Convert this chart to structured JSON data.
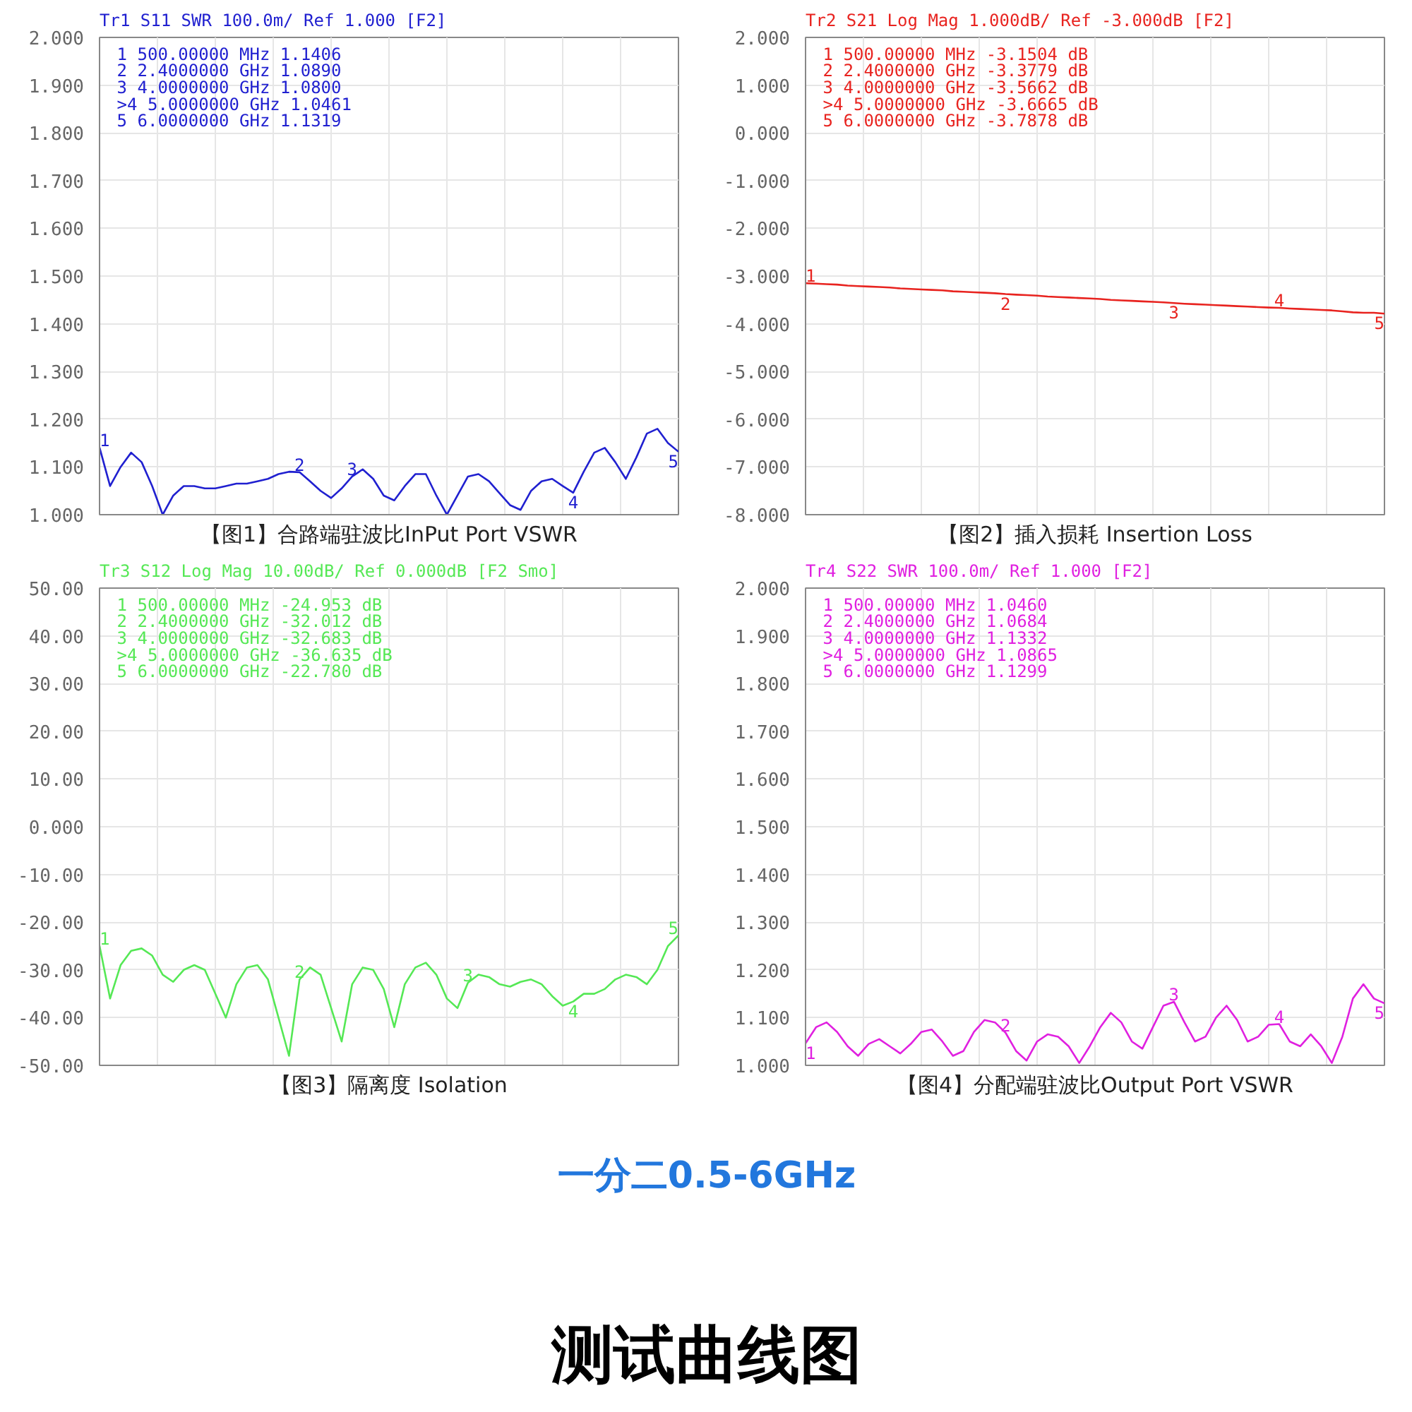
{
  "chart_data": [
    {
      "type": "line",
      "title": "Tr1 S11 SWR 100.0m/ Ref 1.000 [F2]",
      "xlabel": "【图1】合路端驻波比InPut Port VSWR",
      "categories": [
        null,
        null,
        null,
        null,
        null,
        null,
        null,
        null,
        null,
        null,
        null,
        null,
        null,
        null,
        null,
        null,
        null,
        null,
        null,
        null,
        null,
        null,
        null,
        null,
        null,
        null,
        null,
        null,
        null,
        null,
        null,
        null,
        null,
        null,
        null,
        null,
        null,
        null,
        null,
        null,
        null,
        null,
        null,
        null,
        null,
        null,
        null,
        null,
        null,
        null,
        null,
        null,
        null,
        null,
        null,
        null
      ],
      "series": [
        {
          "color": "#2020d0",
          "values": [
            1.1406,
            1.06,
            1.1,
            1.13,
            1.11,
            1.06,
            1.0,
            1.04,
            1.06,
            1.06,
            1.055,
            1.055,
            1.06,
            1.065,
            1.065,
            1.07,
            1.075,
            1.085,
            1.09,
            1.089,
            1.07,
            1.05,
            1.035,
            1.055,
            1.08,
            1.095,
            1.075,
            1.04,
            1.03,
            1.06,
            1.085,
            1.085,
            1.04,
            1.0,
            1.04,
            1.08,
            1.085,
            1.07,
            1.045,
            1.02,
            1.01,
            1.05,
            1.07,
            1.075,
            1.06,
            1.0461,
            1.09,
            1.13,
            1.14,
            1.11,
            1.075,
            1.12,
            1.17,
            1.18,
            1.15,
            1.1319
          ]
        }
      ],
      "ylim": [
        1.0,
        2.0
      ],
      "yticks": [
        {
          "value": 1.0,
          "label": "1.000"
        },
        {
          "value": 1.1,
          "label": "1.100"
        },
        {
          "value": 1.2,
          "label": "1.200"
        },
        {
          "value": 1.3,
          "label": "1.300"
        },
        {
          "value": 1.4,
          "label": "1.400"
        },
        {
          "value": 1.5,
          "label": "1.500"
        },
        {
          "value": 1.6,
          "label": "1.600"
        },
        {
          "value": 1.7,
          "label": "1.700"
        },
        {
          "value": 1.8,
          "label": "1.800"
        },
        {
          "value": 1.9,
          "label": "1.900"
        },
        {
          "value": 2.0,
          "label": "2.000"
        }
      ],
      "grid": true,
      "annotations": [
        "1   500.00000 MHz  1.1406",
        "2   2.4000000 GHz  1.0890",
        "3   4.0000000 GHz  1.0800",
        ">4  5.0000000 GHz  1.0461",
        "5   6.0000000 GHz  1.1319",
        {
          "text": "1",
          "y": 1.1406
        },
        {
          "text": "2",
          "y": 1.089
        },
        {
          "text": "3",
          "y": 1.08
        },
        {
          "text": "4",
          "y": 1.0461
        },
        {
          "text": "5",
          "y": 1.1319
        }
      ]
    },
    {
      "type": "line",
      "title": "Tr2 S21 Log Mag 1.000dB/ Ref -3.000dB [F2]",
      "xlabel": "【图2】插入损耗 Insertion Loss",
      "categories": [
        null,
        null,
        null,
        null,
        null,
        null,
        null,
        null,
        null,
        null,
        null,
        null,
        null,
        null,
        null,
        null,
        null,
        null,
        null,
        null,
        null,
        null,
        null,
        null,
        null,
        null,
        null,
        null,
        null,
        null,
        null,
        null,
        null,
        null,
        null,
        null,
        null,
        null,
        null,
        null,
        null,
        null,
        null,
        null,
        null,
        null,
        null,
        null,
        null,
        null,
        null,
        null,
        null,
        null,
        null,
        null
      ],
      "series": [
        {
          "color": "#e8231f",
          "values": [
            -3.1504,
            -3.16,
            -3.17,
            -3.18,
            -3.2,
            -3.21,
            -3.22,
            -3.23,
            -3.24,
            -3.26,
            -3.27,
            -3.28,
            -3.29,
            -3.3,
            -3.32,
            -3.33,
            -3.34,
            -3.35,
            -3.36,
            -3.3779,
            -3.39,
            -3.4,
            -3.41,
            -3.43,
            -3.44,
            -3.45,
            -3.46,
            -3.47,
            -3.48,
            -3.5,
            -3.51,
            -3.52,
            -3.53,
            -3.54,
            -3.55,
            -3.5662,
            -3.58,
            -3.59,
            -3.6,
            -3.61,
            -3.62,
            -3.63,
            -3.64,
            -3.65,
            -3.66,
            -3.6665,
            -3.68,
            -3.69,
            -3.7,
            -3.71,
            -3.72,
            -3.74,
            -3.76,
            -3.77,
            -3.77,
            -3.7878
          ]
        }
      ],
      "ylim": [
        -8.0,
        2.0
      ],
      "yticks": [
        {
          "value": -8,
          "label": "-8.000"
        },
        {
          "value": -7,
          "label": "-7.000"
        },
        {
          "value": -6,
          "label": "-6.000"
        },
        {
          "value": -5,
          "label": "-5.000"
        },
        {
          "value": -4,
          "label": "-4.000"
        },
        {
          "value": -3,
          "label": "-3.000"
        },
        {
          "value": -2,
          "label": "-2.000"
        },
        {
          "value": -1,
          "label": "-1.000"
        },
        {
          "value": 0,
          "label": "0.000"
        },
        {
          "value": 1,
          "label": "1.000"
        },
        {
          "value": 2,
          "label": "2.000"
        }
      ],
      "grid": true,
      "annotations": [
        "1   500.00000 MHz -3.1504 dB",
        "2   2.4000000 GHz -3.3779 dB",
        "3   4.0000000 GHz -3.5662 dB",
        ">4  5.0000000 GHz -3.6665 dB",
        "5   6.0000000 GHz -3.7878 dB",
        {
          "text": "1",
          "y": -3.1504
        },
        {
          "text": "2",
          "y": -3.3779
        },
        {
          "text": "3",
          "y": -3.5662
        },
        {
          "text": "4",
          "y": -3.6665
        },
        {
          "text": "5",
          "y": -3.7878
        }
      ]
    },
    {
      "type": "line",
      "title": "Tr3 S12 Log Mag 10.00dB/ Ref 0.000dB [F2 Smo]",
      "xlabel": "【图3】隔离度 Isolation",
      "categories": [
        null,
        null,
        null,
        null,
        null,
        null,
        null,
        null,
        null,
        null,
        null,
        null,
        null,
        null,
        null,
        null,
        null,
        null,
        null,
        null,
        null,
        null,
        null,
        null,
        null,
        null,
        null,
        null,
        null,
        null,
        null,
        null,
        null,
        null,
        null,
        null,
        null,
        null,
        null,
        null,
        null,
        null,
        null,
        null,
        null,
        null,
        null,
        null,
        null,
        null,
        null,
        null,
        null,
        null,
        null,
        null
      ],
      "series": [
        {
          "color": "#55e855",
          "values": [
            -24.953,
            -36,
            -29,
            -26,
            -25.5,
            -27,
            -31,
            -32.5,
            -30,
            -29,
            -30,
            -35,
            -40,
            -33,
            -29.5,
            -29,
            -32,
            -40,
            -48,
            -32.012,
            -29.5,
            -31,
            -38,
            -45,
            -33,
            -29.5,
            -30,
            -34,
            -42,
            -33,
            -29.5,
            -28.5,
            -31,
            -36,
            -38,
            -32.683,
            -31,
            -31.5,
            -33,
            -33.5,
            -32.5,
            -32,
            -33,
            -35.5,
            -37.5,
            -36.635,
            -35,
            -35,
            -34,
            -32,
            -31,
            -31.5,
            -33,
            -30,
            -25,
            -22.78
          ]
        }
      ],
      "ylim": [
        -50,
        50
      ],
      "yticks": [
        {
          "value": -50,
          "label": "-50.00"
        },
        {
          "value": -40,
          "label": "-40.00"
        },
        {
          "value": -30,
          "label": "-30.00"
        },
        {
          "value": -20,
          "label": "-20.00"
        },
        {
          "value": -10,
          "label": "-10.00"
        },
        {
          "value": 0,
          "label": "0.000"
        },
        {
          "value": 10,
          "label": "10.00"
        },
        {
          "value": 20,
          "label": "20.00"
        },
        {
          "value": 30,
          "label": "30.00"
        },
        {
          "value": 40,
          "label": "40.00"
        },
        {
          "value": 50,
          "label": "50.00"
        }
      ],
      "grid": true,
      "annotations": [
        "1   500.00000 MHz -24.953 dB",
        "2   2.4000000 GHz -32.012 dB",
        "3   4.0000000 GHz -32.683 dB",
        ">4  5.0000000 GHz -36.635 dB",
        "5   6.0000000 GHz -22.780 dB",
        {
          "text": "1",
          "y": -24.953
        },
        {
          "text": "2",
          "y": -32.012
        },
        {
          "text": "3",
          "y": -32.683
        },
        {
          "text": "4",
          "y": -36.635
        },
        {
          "text": "5",
          "y": -22.78
        }
      ]
    },
    {
      "type": "line",
      "title": "Tr4 S22 SWR 100.0m/ Ref 1.000 [F2]",
      "xlabel": "【图4】分配端驻波比Output Port VSWR",
      "categories": [
        null,
        null,
        null,
        null,
        null,
        null,
        null,
        null,
        null,
        null,
        null,
        null,
        null,
        null,
        null,
        null,
        null,
        null,
        null,
        null,
        null,
        null,
        null,
        null,
        null,
        null,
        null,
        null,
        null,
        null,
        null,
        null,
        null,
        null,
        null,
        null,
        null,
        null,
        null,
        null,
        null,
        null,
        null,
        null,
        null,
        null,
        null,
        null,
        null,
        null,
        null,
        null,
        null,
        null,
        null,
        null
      ],
      "series": [
        {
          "color": "#e020e0",
          "values": [
            1.046,
            1.08,
            1.09,
            1.07,
            1.04,
            1.02,
            1.045,
            1.055,
            1.04,
            1.025,
            1.045,
            1.07,
            1.075,
            1.05,
            1.02,
            1.03,
            1.07,
            1.095,
            1.09,
            1.0684,
            1.03,
            1.01,
            1.05,
            1.065,
            1.06,
            1.04,
            1.005,
            1.04,
            1.08,
            1.11,
            1.09,
            1.05,
            1.035,
            1.08,
            1.125,
            1.1332,
            1.09,
            1.05,
            1.06,
            1.1,
            1.125,
            1.095,
            1.05,
            1.06,
            1.085,
            1.0865,
            1.05,
            1.04,
            1.065,
            1.04,
            1.005,
            1.06,
            1.14,
            1.17,
            1.14,
            1.1299
          ]
        }
      ],
      "ylim": [
        1.0,
        2.0
      ],
      "yticks": [
        {
          "value": 1.0,
          "label": "1.000"
        },
        {
          "value": 1.1,
          "label": "1.100"
        },
        {
          "value": 1.2,
          "label": "1.200"
        },
        {
          "value": 1.3,
          "label": "1.300"
        },
        {
          "value": 1.4,
          "label": "1.400"
        },
        {
          "value": 1.5,
          "label": "1.500"
        },
        {
          "value": 1.6,
          "label": "1.600"
        },
        {
          "value": 1.7,
          "label": "1.700"
        },
        {
          "value": 1.8,
          "label": "1.800"
        },
        {
          "value": 1.9,
          "label": "1.900"
        },
        {
          "value": 2.0,
          "label": "2.000"
        }
      ],
      "grid": true,
      "annotations": [
        "1   500.00000 MHz  1.0460",
        "2   2.4000000 GHz  1.0684",
        "3   4.0000000 GHz  1.1332",
        ">4  5.0000000 GHz  1.0865",
        "5   6.0000000 GHz  1.1299",
        {
          "text": "1",
          "y": 1.046
        },
        {
          "text": "2",
          "y": 1.0684
        },
        {
          "text": "3",
          "y": 1.1332
        },
        {
          "text": "4",
          "y": 1.0865
        },
        {
          "text": "5",
          "y": 1.1299
        }
      ]
    },
    {
      "type": "other",
      "title": "测试曲线图",
      "annotations": [
        "一分二0.5-6GHz"
      ]
    }
  ]
}
